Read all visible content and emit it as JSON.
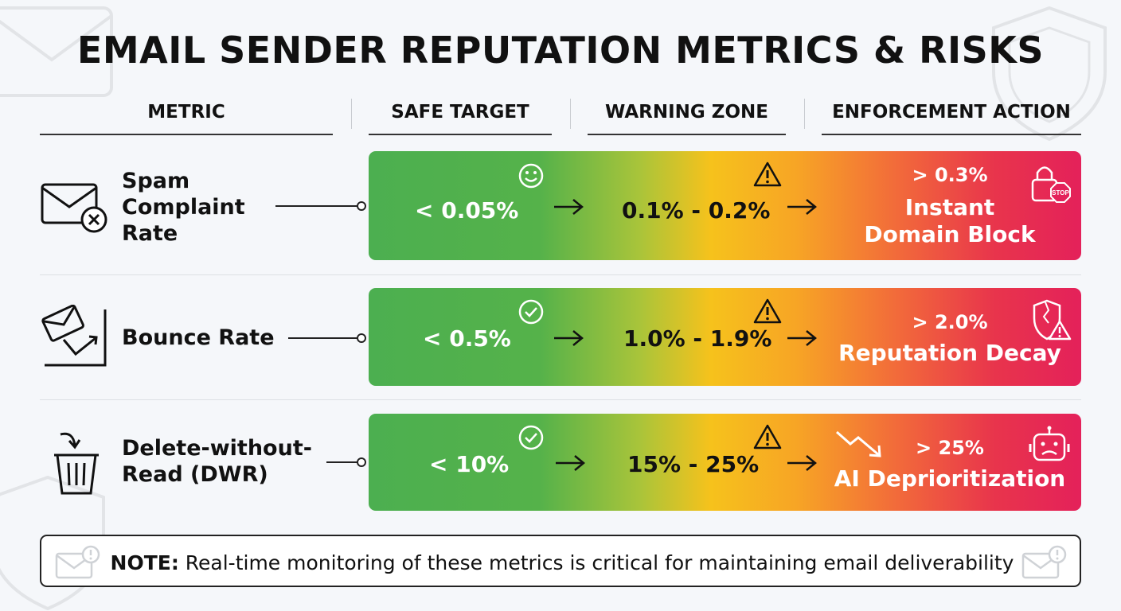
{
  "title": "EMAIL SENDER REPUTATION METRICS & RISKS",
  "columns": {
    "metric": "METRIC",
    "safe": "SAFE TARGET",
    "warning": "WARNING ZONE",
    "enforcement": "ENFORCEMENT ACTION"
  },
  "rows": [
    {
      "metric_lines": [
        "Spam",
        "Complaint",
        "Rate"
      ],
      "metric_icon": "envelope-x-icon",
      "safe": "< 0.05%",
      "safe_icon": "smiley-icon",
      "warning": "0.1% - 0.2%",
      "warning_icon": "warning-triangle-icon",
      "threshold": "> 0.3%",
      "action_lines": [
        "Instant",
        "Domain Block"
      ],
      "action_icon": "lock-stop-icon"
    },
    {
      "metric_lines": [
        "Bounce Rate"
      ],
      "metric_icon": "envelope-bounce-icon",
      "safe": "< 0.5%",
      "safe_icon": "check-circle-icon",
      "warning": "1.0% - 1.9%",
      "warning_icon": "warning-triangle-icon",
      "threshold": "> 2.0%",
      "action_lines": [
        "Reputation Decay"
      ],
      "action_icon": "broken-shield-warning-icon"
    },
    {
      "metric_lines": [
        "Delete-without-",
        "Read (DWR)"
      ],
      "metric_icon": "trash-icon",
      "safe": "< 10%",
      "safe_icon": "check-circle-icon",
      "warning": "15% - 25%",
      "warning_icon": "warning-triangle-icon",
      "threshold": "> 25%",
      "action_lines": [
        "AI Deprioritization"
      ],
      "action_icon": "sad-robot-icon",
      "extra_icon": "trend-down-icon"
    }
  ],
  "note": {
    "label": "NOTE:",
    "text": " Real-time monitoring of these metrics is critical for maintaining email deliverability",
    "icon": "envelope-alert-icon"
  },
  "colors": {
    "safe": "#4caf50",
    "warning": "#f6c21c",
    "danger": "#e4215a",
    "text": "#111111"
  }
}
